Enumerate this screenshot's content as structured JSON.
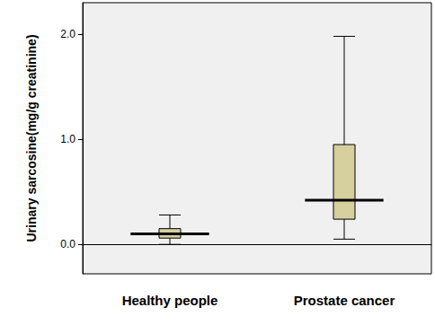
{
  "chart_data": {
    "type": "boxplot",
    "ylabel": "Urinary sarcosine(mg/g creatinine)",
    "categories": [
      "Healthy people",
      "Prostate cancer"
    ],
    "values": [
      [
        0.0,
        0.06,
        0.1,
        0.15,
        0.28
      ],
      [
        0.05,
        0.24,
        0.42,
        0.95,
        1.98
      ]
    ],
    "color": "#d6cf9e",
    "ylim": [
      -0.28,
      2.3
    ],
    "yticks": [
      {
        "value": 0,
        "label": "0.0"
      },
      {
        "value": 1,
        "label": "1.0"
      },
      {
        "value": 2,
        "label": "2.0"
      }
    ],
    "grid": false
  }
}
